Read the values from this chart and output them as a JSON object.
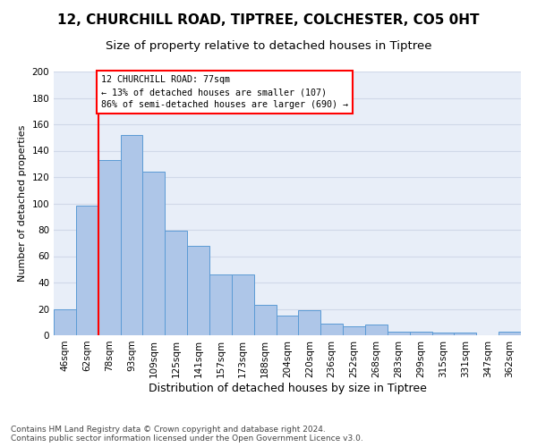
{
  "title1": "12, CHURCHILL ROAD, TIPTREE, COLCHESTER, CO5 0HT",
  "title2": "Size of property relative to detached houses in Tiptree",
  "xlabel": "Distribution of detached houses by size in Tiptree",
  "ylabel": "Number of detached properties",
  "categories": [
    "46sqm",
    "62sqm",
    "78sqm",
    "93sqm",
    "109sqm",
    "125sqm",
    "141sqm",
    "157sqm",
    "173sqm",
    "188sqm",
    "204sqm",
    "220sqm",
    "236sqm",
    "252sqm",
    "268sqm",
    "283sqm",
    "299sqm",
    "315sqm",
    "331sqm",
    "347sqm",
    "362sqm"
  ],
  "values": [
    20,
    98,
    133,
    152,
    124,
    79,
    68,
    46,
    46,
    23,
    15,
    19,
    9,
    7,
    8,
    3,
    3,
    2,
    2,
    0,
    3
  ],
  "bar_color": "#aec6e8",
  "bar_edge_color": "#5b9bd5",
  "annotation_text": "12 CHURCHILL ROAD: 77sqm\n← 13% of detached houses are smaller (107)\n86% of semi-detached houses are larger (690) →",
  "annotation_box_color": "white",
  "annotation_box_edge_color": "red",
  "property_line_color": "red",
  "ylim": [
    0,
    200
  ],
  "yticks": [
    0,
    20,
    40,
    60,
    80,
    100,
    120,
    140,
    160,
    180,
    200
  ],
  "grid_color": "#d0d8e8",
  "bg_color": "#e8eef8",
  "footer": "Contains HM Land Registry data © Crown copyright and database right 2024.\nContains public sector information licensed under the Open Government Licence v3.0.",
  "title1_fontsize": 11,
  "title2_fontsize": 9.5,
  "xlabel_fontsize": 9,
  "ylabel_fontsize": 8,
  "tick_fontsize": 7.5,
  "footer_fontsize": 6.5
}
